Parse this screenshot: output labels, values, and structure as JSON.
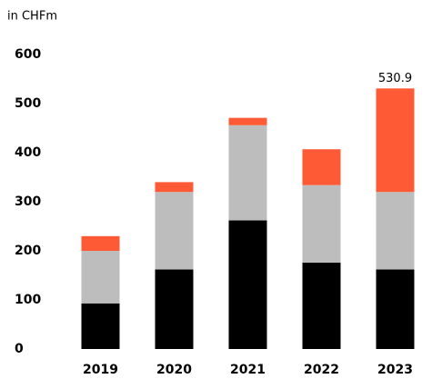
{
  "chart_data": {
    "type": "stacked_bar",
    "y_label": "in CHFm",
    "categories": [
      "2019",
      "2020",
      "2021",
      "2022",
      "2023"
    ],
    "series": [
      {
        "color": "#000000",
        "values": [
          93,
          162,
          262,
          176,
          162
        ]
      },
      {
        "color": "#bdbdbd",
        "values": [
          107,
          158,
          194,
          158,
          158
        ]
      },
      {
        "color": "#ff5a36",
        "values": [
          30,
          20,
          15,
          73,
          210.9
        ]
      }
    ],
    "totals": [
      null,
      null,
      null,
      null,
      530.9
    ],
    "ylim": [
      0,
      600
    ],
    "yticks": [
      0,
      100,
      200,
      300,
      400,
      500,
      600
    ],
    "grid": false
  }
}
